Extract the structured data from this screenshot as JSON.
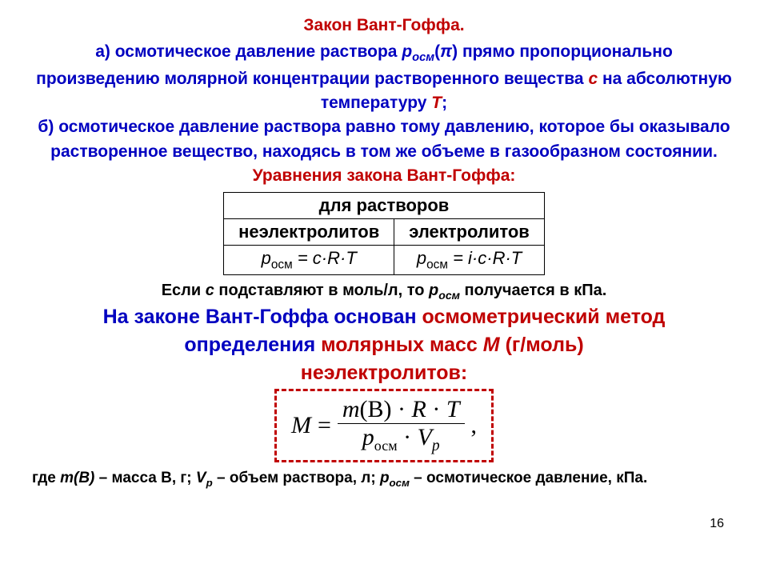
{
  "title": "Закон Вант-Гоффа.",
  "para_a": {
    "lead": "а)",
    "t1": " осмотическое давление раствора ",
    "p": "p",
    "psub": "осм",
    "pi_open": "(",
    "pi": "π",
    "pi_close": ")",
    "t2": " прямо пропорционально произведению молярной концентрации растворенного вещества ",
    "c": "с",
    "t3": " на абсолютную температуру ",
    "T": "T",
    "semi": ";"
  },
  "para_b": "б)  осмотическое давление раствора равно тому давлению, которое бы оказывало растворенное вещество, находясь в том же объеме в газообразном состоянии.",
  "eq_head": "Уравнения закона Вант-Гоффа:",
  "table": {
    "top": "для растворов",
    "left": "неэлектролитов",
    "right": "электролитов",
    "f_left_p": "p",
    "f_left_sub": "осм",
    "f_left_rhs": " = c·R·T",
    "f_right_p": "p",
    "f_right_sub": "осм",
    "f_right_rhs": " = i·c·R·T"
  },
  "note": {
    "t1": "Если ",
    "c": "с",
    "t2": " подставляют в моль/л, то ",
    "p": "р",
    "psub": "осм",
    "t3": " получается в кПа."
  },
  "method": {
    "l1a": "На законе Вант-Гоффа основан ",
    "l1b": "осмометрический метод",
    "l2a": "определения ",
    "l2b": "молярных масс ",
    "M": "М",
    "l2c": " (г/моль)",
    "l3": "неэлектролитов:"
  },
  "big_eq": {
    "M": "M",
    "eq": " = ",
    "num_m": "m",
    "num_B": "(B)",
    "num_dot1": " · ",
    "num_R": "R",
    "num_dot2": " · ",
    "num_T": "T",
    "den_p": "p",
    "den_psub": "осм",
    "den_dot": " · ",
    "den_V": "V",
    "den_Vsub": "p",
    "comma": ","
  },
  "footer": {
    "t1": "где ",
    "mB": "m(B)",
    "t2": " – масса В, г; ",
    "V": "V",
    "Vsub": "р",
    "t3": " – объем раствора, л; ",
    "p": "р",
    "psub": "осм",
    "t4": " – осмотическое давление, кПа."
  },
  "page": "16"
}
